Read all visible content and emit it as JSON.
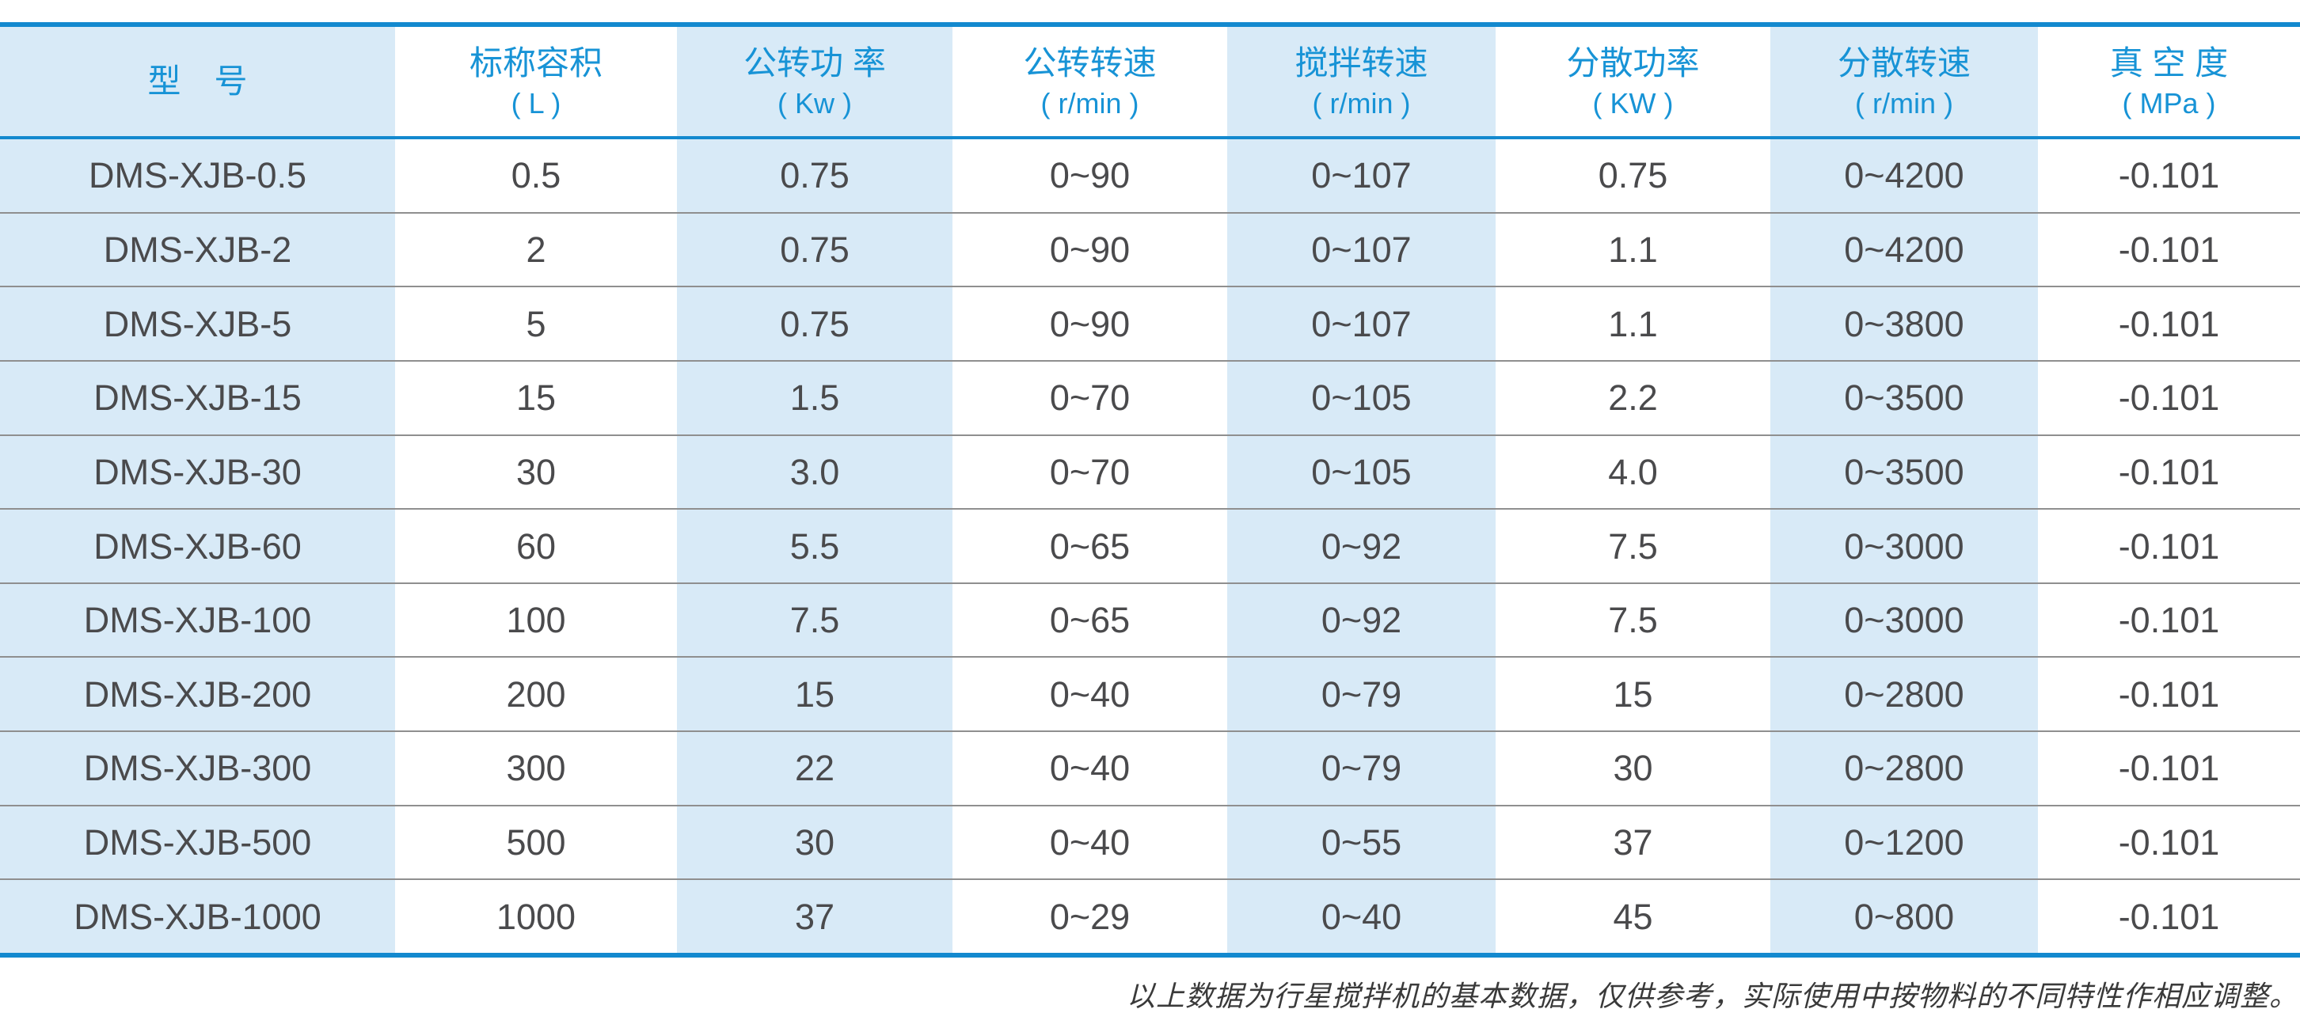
{
  "table": {
    "columns": [
      {
        "title": "型　号",
        "unit": null
      },
      {
        "title": "标称容积",
        "unit": "( L )"
      },
      {
        "title": "公转功 率",
        "unit": "( Kw )"
      },
      {
        "title": "公转转速",
        "unit": "( r/min )"
      },
      {
        "title": "搅拌转速",
        "unit": "( r/min )"
      },
      {
        "title": "分散功率",
        "unit": "( KW )"
      },
      {
        "title": "分散转速",
        "unit": "( r/min )"
      },
      {
        "title": "真 空 度",
        "unit": "( MPa )"
      }
    ],
    "rows": [
      [
        "DMS-XJB-0.5",
        "0.5",
        "0.75",
        "0~90",
        "0~107",
        "0.75",
        "0~4200",
        "-0.101"
      ],
      [
        "DMS-XJB-2",
        "2",
        "0.75",
        "0~90",
        "0~107",
        "1.1",
        "0~4200",
        "-0.101"
      ],
      [
        "DMS-XJB-5",
        "5",
        "0.75",
        "0~90",
        "0~107",
        "1.1",
        "0~3800",
        "-0.101"
      ],
      [
        "DMS-XJB-15",
        "15",
        "1.5",
        "0~70",
        "0~105",
        "2.2",
        "0~3500",
        "-0.101"
      ],
      [
        "DMS-XJB-30",
        "30",
        "3.0",
        "0~70",
        "0~105",
        "4.0",
        "0~3500",
        "-0.101"
      ],
      [
        "DMS-XJB-60",
        "60",
        "5.5",
        "0~65",
        "0~92",
        "7.5",
        "0~3000",
        "-0.101"
      ],
      [
        "DMS-XJB-100",
        "100",
        "7.5",
        "0~65",
        "0~92",
        "7.5",
        "0~3000",
        "-0.101"
      ],
      [
        "DMS-XJB-200",
        "200",
        "15",
        "0~40",
        "0~79",
        "15",
        "0~2800",
        "-0.101"
      ],
      [
        "DMS-XJB-300",
        "300",
        "22",
        "0~40",
        "0~79",
        "30",
        "0~2800",
        "-0.101"
      ],
      [
        "DMS-XJB-500",
        "500",
        "30",
        "0~40",
        "0~55",
        "37",
        "0~1200",
        "-0.101"
      ],
      [
        "DMS-XJB-1000",
        "1000",
        "37",
        "0~29",
        "0~40",
        "45",
        "0~800",
        "-0.101"
      ]
    ]
  },
  "footer": {
    "note": "以上数据为行星搅拌机的基本数据，仅供参考，实际使用中按物料的不同特性作相应调整。"
  },
  "colors": {
    "accent_blue": "#1389cf",
    "header_text": "#1793d6",
    "cell_shade": "#d8eaf7",
    "body_text": "#4a4a4c",
    "separator": "#8f8f8f",
    "footer_text": "#3a3a3a"
  }
}
